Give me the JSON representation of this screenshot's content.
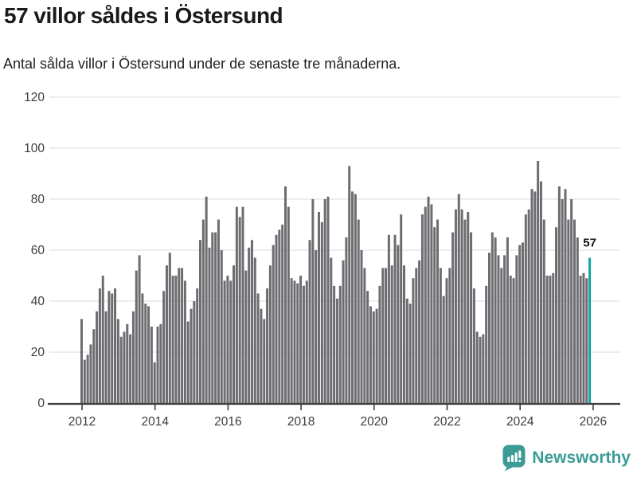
{
  "header": {
    "title": "57 villor såldes i Östersund",
    "subtitle": "Antal sålda villor i Östersund under de senaste tre månaderna."
  },
  "annotation": {
    "last_value_label": "57"
  },
  "footer": {
    "brand": "Newsworthy",
    "logo_icon": "newsworthy-pin-barchart-icon",
    "brand_color": "#3b9c96"
  },
  "chart_data": {
    "type": "bar",
    "title": "57 villor såldes i Östersund",
    "subtitle": "Antal sålda villor i Östersund under de senaste tre månaderna.",
    "frequency": "monthly",
    "x_start": "2012-01",
    "x_end": "2025-12",
    "x_tick_labels": [
      "2012",
      "2014",
      "2016",
      "2018",
      "2020",
      "2022",
      "2024",
      "2026"
    ],
    "y_tick_labels": [
      "0",
      "20",
      "40",
      "60",
      "80",
      "100",
      "120"
    ],
    "y_ticks": [
      0,
      20,
      40,
      60,
      80,
      100,
      120
    ],
    "ylim": [
      0,
      124
    ],
    "grid": true,
    "legend": "none",
    "bar_color": "#6d6d71",
    "highlight_color": "#0ea5a1",
    "grid_color": "#e2e2e2",
    "axis_color": "#3f3f3f",
    "tick_label_color": "#3c3c3c",
    "highlight_last_bar": true,
    "highlight_value": 57,
    "values": [
      33,
      17,
      19,
      23,
      29,
      36,
      45,
      50,
      36,
      44,
      43,
      45,
      33,
      26,
      28,
      31,
      27,
      36,
      52,
      58,
      43,
      39,
      38,
      30,
      16,
      30,
      31,
      44,
      54,
      59,
      50,
      50,
      53,
      53,
      48,
      32,
      37,
      40,
      45,
      64,
      72,
      81,
      61,
      67,
      67,
      72,
      60,
      48,
      50,
      48,
      54,
      77,
      73,
      77,
      52,
      61,
      64,
      57,
      43,
      37,
      33,
      45,
      54,
      62,
      66,
      68,
      70,
      85,
      77,
      49,
      48,
      47,
      50,
      46,
      48,
      64,
      80,
      60,
      75,
      71,
      80,
      81,
      57,
      46,
      41,
      46,
      56,
      65,
      93,
      83,
      82,
      72,
      60,
      53,
      44,
      38,
      36,
      37,
      46,
      53,
      53,
      66,
      54,
      66,
      62,
      74,
      54,
      41,
      39,
      49,
      53,
      56,
      74,
      77,
      81,
      78,
      69,
      72,
      53,
      42,
      49,
      53,
      67,
      76,
      82,
      76,
      72,
      75,
      67,
      45,
      28,
      26,
      27,
      46,
      59,
      67,
      65,
      58,
      53,
      58,
      65,
      50,
      49,
      58,
      62,
      63,
      74,
      76,
      84,
      83,
      95,
      87,
      72,
      50,
      50,
      51,
      69,
      85,
      80,
      84,
      72,
      80,
      72,
      65,
      50,
      51,
      49,
      57
    ]
  }
}
